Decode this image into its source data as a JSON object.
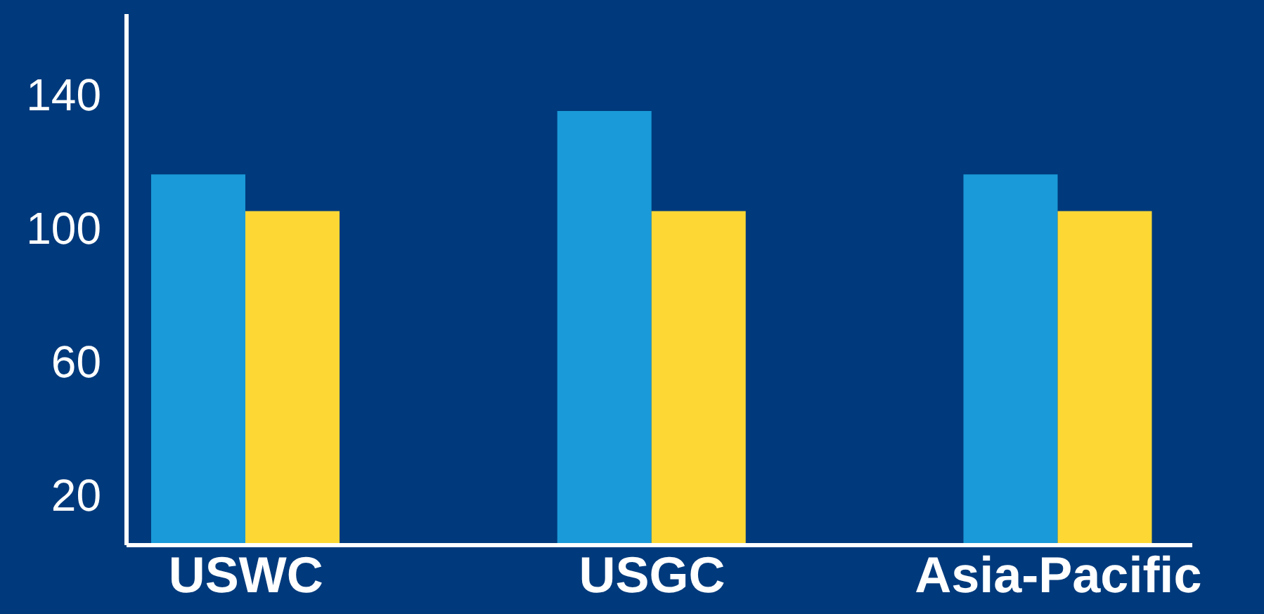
{
  "chart_data": {
    "type": "bar",
    "categories": [
      "USWC",
      "USGC",
      "Asia-Pacific"
    ],
    "series": [
      {
        "color": "#1a9ad8",
        "values": [
          116,
          135,
          116
        ]
      },
      {
        "color": "#fdd835",
        "values": [
          105,
          105,
          105
        ]
      }
    ],
    "ylim": [
      5,
      164
    ],
    "yticks": [
      20,
      60,
      100,
      140
    ],
    "grid": false,
    "legend": false
  }
}
